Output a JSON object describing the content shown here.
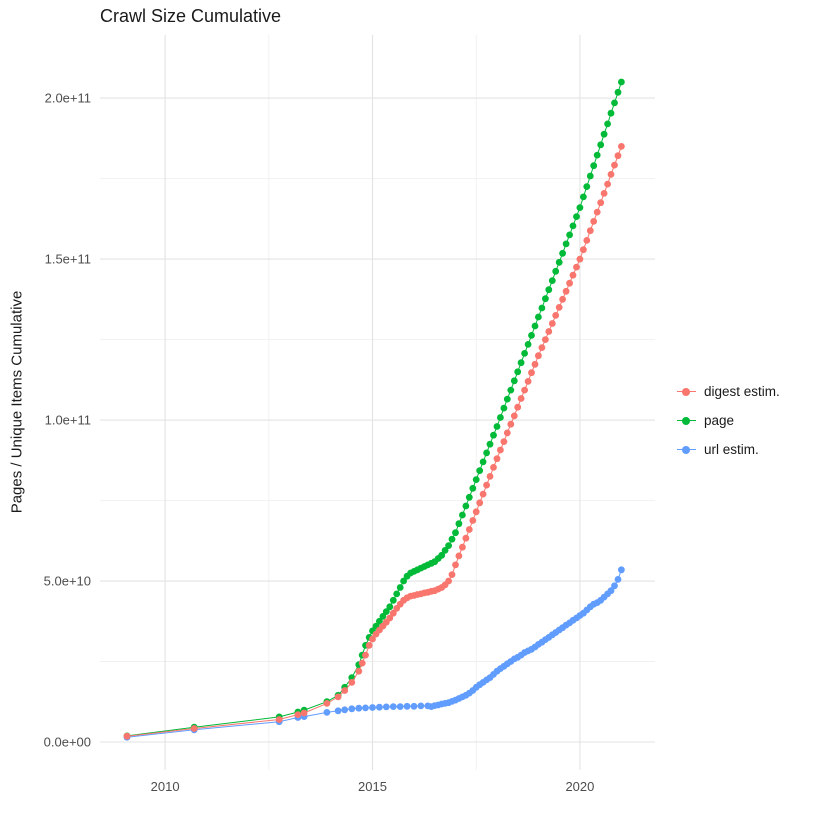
{
  "title": "Crawl Size Cumulative",
  "y_axis_title": "Pages / Unique Items Cumulative",
  "colors": {
    "background": "#ffffff",
    "grid_major": "#e3e3e3",
    "grid_minor": "#f0f0f0",
    "axis_text": "#4d4d4d",
    "title_text": "#1a1a1a",
    "digest": "#F8766D",
    "page": "#00BA38",
    "url": "#619CFF"
  },
  "legend": {
    "items": [
      {
        "label": "digest estim.",
        "color": "#F8766D"
      },
      {
        "label": "page",
        "color": "#00BA38"
      },
      {
        "label": "url estim.",
        "color": "#619CFF"
      }
    ]
  },
  "chart_data": {
    "type": "scatter",
    "title": "Crawl Size Cumulative",
    "xlabel": "",
    "ylabel": "Pages / Unique Items Cumulative",
    "grid": true,
    "legend_position": "right",
    "xlim": [
      2008.43,
      2021.81
    ],
    "ylim": [
      -8700000000.0,
      219600000000.0
    ],
    "x_ticks": {
      "values": [
        2010,
        2015,
        2020
      ],
      "labels": [
        "2010",
        "2015",
        "2020"
      ]
    },
    "x_minor_ticks": [
      2012.5,
      2017.5
    ],
    "y_ticks": {
      "values": [
        0,
        50000000000.0,
        100000000000.0,
        150000000000.0,
        200000000000.0
      ],
      "labels": [
        "0.0e+00",
        "5.0e+10",
        "1.0e+11",
        "1.5e+11",
        "2.0e+11"
      ]
    },
    "y_minor_ticks": [
      25000000000.0,
      75000000000.0,
      125000000000.0,
      175000000000.0
    ],
    "series": [
      {
        "name": "digest estim.",
        "color": "#F8766D",
        "points": [
          [
            2009.08,
            1800000000.0
          ],
          [
            2010.7,
            4200000000.0
          ],
          [
            2012.75,
            7000000000.0
          ],
          [
            2013.2,
            8500000000.0
          ],
          [
            2013.35,
            9000000000.0
          ],
          [
            2013.9,
            12000000000.0
          ],
          [
            2014.17,
            14000000000.0
          ],
          [
            2014.33,
            16000000000.0
          ],
          [
            2014.5,
            18500000000.0
          ],
          [
            2014.67,
            22000000000.0
          ],
          [
            2014.75,
            24500000000.0
          ],
          [
            2014.83,
            27000000000.0
          ],
          [
            2014.92,
            30000000000.0
          ],
          [
            2015.0,
            32000000000.0
          ],
          [
            2015.083,
            33500000000.0
          ],
          [
            2015.167,
            34800000000.0
          ],
          [
            2015.25,
            36000000000.0
          ],
          [
            2015.333,
            37200000000.0
          ],
          [
            2015.417,
            38500000000.0
          ],
          [
            2015.5,
            40000000000.0
          ],
          [
            2015.583,
            41500000000.0
          ],
          [
            2015.667,
            42800000000.0
          ],
          [
            2015.75,
            44000000000.0
          ],
          [
            2015.833,
            44800000000.0
          ],
          [
            2015.917,
            45300000000.0
          ],
          [
            2016.0,
            45500000000.0
          ],
          [
            2016.083,
            45800000000.0
          ],
          [
            2016.167,
            46000000000.0
          ],
          [
            2016.25,
            46300000000.0
          ],
          [
            2016.333,
            46500000000.0
          ],
          [
            2016.417,
            46800000000.0
          ],
          [
            2016.5,
            47000000000.0
          ],
          [
            2016.583,
            47500000000.0
          ],
          [
            2016.667,
            48000000000.0
          ],
          [
            2016.75,
            48800000000.0
          ],
          [
            2016.833,
            50000000000.0
          ],
          [
            2016.917,
            52000000000.0
          ],
          [
            2017.0,
            55000000000.0
          ],
          [
            2017.083,
            57800000000.0
          ],
          [
            2017.167,
            60500000000.0
          ],
          [
            2017.25,
            63300000000.0
          ],
          [
            2017.333,
            66000000000.0
          ],
          [
            2017.417,
            68800000000.0
          ],
          [
            2017.5,
            71500000000.0
          ],
          [
            2017.583,
            74300000000.0
          ],
          [
            2017.667,
            77000000000.0
          ],
          [
            2017.75,
            79800000000.0
          ],
          [
            2017.833,
            82500000000.0
          ],
          [
            2017.917,
            85300000000.0
          ],
          [
            2018.0,
            88000000000.0
          ],
          [
            2018.083,
            90700000000.0
          ],
          [
            2018.167,
            93300000000.0
          ],
          [
            2018.25,
            96000000000.0
          ],
          [
            2018.333,
            98700000000.0
          ],
          [
            2018.417,
            101300000000.0
          ],
          [
            2018.5,
            104000000000.0
          ],
          [
            2018.583,
            106700000000.0
          ],
          [
            2018.667,
            109300000000.0
          ],
          [
            2018.75,
            112000000000.0
          ],
          [
            2018.833,
            114700000000.0
          ],
          [
            2018.917,
            117300000000.0
          ],
          [
            2019.0,
            120000000000.0
          ],
          [
            2019.083,
            122500000000.0
          ],
          [
            2019.167,
            125000000000.0
          ],
          [
            2019.25,
            127500000000.0
          ],
          [
            2019.333,
            130000000000.0
          ],
          [
            2019.417,
            132500000000.0
          ],
          [
            2019.5,
            135000000000.0
          ],
          [
            2019.583,
            137500000000.0
          ],
          [
            2019.667,
            140000000000.0
          ],
          [
            2019.75,
            142500000000.0
          ],
          [
            2019.833,
            145000000000.0
          ],
          [
            2019.917,
            147500000000.0
          ],
          [
            2020.0,
            150000000000.0
          ],
          [
            2020.083,
            152900000000.0
          ],
          [
            2020.167,
            155800000000.0
          ],
          [
            2020.25,
            158800000000.0
          ],
          [
            2020.333,
            161700000000.0
          ],
          [
            2020.417,
            164600000000.0
          ],
          [
            2020.5,
            167500000000.0
          ],
          [
            2020.583,
            170400000000.0
          ],
          [
            2020.667,
            173300000000.0
          ],
          [
            2020.75,
            176300000000.0
          ],
          [
            2020.833,
            179200000000.0
          ],
          [
            2020.917,
            182100000000.0
          ],
          [
            2021.0,
            185000000000.0
          ]
        ]
      },
      {
        "name": "page",
        "color": "#00BA38",
        "points": [
          [
            2009.08,
            1900000000.0
          ],
          [
            2010.7,
            4600000000.0
          ],
          [
            2012.75,
            7800000000.0
          ],
          [
            2013.2,
            9300000000.0
          ],
          [
            2013.35,
            9900000000.0
          ],
          [
            2013.9,
            12500000000.0
          ],
          [
            2014.17,
            14500000000.0
          ],
          [
            2014.33,
            17000000000.0
          ],
          [
            2014.5,
            20000000000.0
          ],
          [
            2014.67,
            24000000000.0
          ],
          [
            2014.75,
            27000000000.0
          ],
          [
            2014.83,
            30000000000.0
          ],
          [
            2014.92,
            32500000000.0
          ],
          [
            2015.0,
            34500000000.0
          ],
          [
            2015.083,
            36000000000.0
          ],
          [
            2015.167,
            37500000000.0
          ],
          [
            2015.25,
            39000000000.0
          ],
          [
            2015.333,
            40500000000.0
          ],
          [
            2015.417,
            42000000000.0
          ],
          [
            2015.5,
            44000000000.0
          ],
          [
            2015.583,
            46000000000.0
          ],
          [
            2015.667,
            48000000000.0
          ],
          [
            2015.75,
            50000000000.0
          ],
          [
            2015.833,
            51500000000.0
          ],
          [
            2015.917,
            52500000000.0
          ],
          [
            2016.0,
            53000000000.0
          ],
          [
            2016.083,
            53500000000.0
          ],
          [
            2016.167,
            54000000000.0
          ],
          [
            2016.25,
            54500000000.0
          ],
          [
            2016.333,
            55000000000.0
          ],
          [
            2016.417,
            55500000000.0
          ],
          [
            2016.5,
            56000000000.0
          ],
          [
            2016.583,
            57000000000.0
          ],
          [
            2016.667,
            58000000000.0
          ],
          [
            2016.75,
            59500000000.0
          ],
          [
            2016.833,
            61000000000.0
          ],
          [
            2016.917,
            63000000000.0
          ],
          [
            2017.0,
            65000000000.0
          ],
          [
            2017.083,
            67800000000.0
          ],
          [
            2017.167,
            70500000000.0
          ],
          [
            2017.25,
            73300000000.0
          ],
          [
            2017.333,
            76000000000.0
          ],
          [
            2017.417,
            78800000000.0
          ],
          [
            2017.5,
            81500000000.0
          ],
          [
            2017.583,
            84300000000.0
          ],
          [
            2017.667,
            87000000000.0
          ],
          [
            2017.75,
            89800000000.0
          ],
          [
            2017.833,
            92500000000.0
          ],
          [
            2017.917,
            95300000000.0
          ],
          [
            2018.0,
            98000000000.0
          ],
          [
            2018.083,
            100800000000.0
          ],
          [
            2018.167,
            103700000000.0
          ],
          [
            2018.25,
            106500000000.0
          ],
          [
            2018.333,
            109300000000.0
          ],
          [
            2018.417,
            112200000000.0
          ],
          [
            2018.5,
            115000000000.0
          ],
          [
            2018.583,
            117800000000.0
          ],
          [
            2018.667,
            120700000000.0
          ],
          [
            2018.75,
            123500000000.0
          ],
          [
            2018.833,
            126300000000.0
          ],
          [
            2018.917,
            129200000000.0
          ],
          [
            2019.0,
            132000000000.0
          ],
          [
            2019.083,
            134800000000.0
          ],
          [
            2019.167,
            137700000000.0
          ],
          [
            2019.25,
            140500000000.0
          ],
          [
            2019.333,
            143300000000.0
          ],
          [
            2019.417,
            146200000000.0
          ],
          [
            2019.5,
            149000000000.0
          ],
          [
            2019.583,
            151800000000.0
          ],
          [
            2019.667,
            154700000000.0
          ],
          [
            2019.75,
            157500000000.0
          ],
          [
            2019.833,
            160300000000.0
          ],
          [
            2019.917,
            163200000000.0
          ],
          [
            2020.0,
            166000000000.0
          ],
          [
            2020.083,
            169300000000.0
          ],
          [
            2020.167,
            172500000000.0
          ],
          [
            2020.25,
            175800000000.0
          ],
          [
            2020.333,
            179000000000.0
          ],
          [
            2020.417,
            182300000000.0
          ],
          [
            2020.5,
            185500000000.0
          ],
          [
            2020.583,
            188800000000.0
          ],
          [
            2020.667,
            192000000000.0
          ],
          [
            2020.75,
            195300000000.0
          ],
          [
            2020.833,
            198500000000.0
          ],
          [
            2020.917,
            201800000000.0
          ],
          [
            2021.0,
            205000000000.0
          ]
        ]
      },
      {
        "name": "url estim.",
        "color": "#619CFF",
        "points": [
          [
            2009.08,
            1500000000.0
          ],
          [
            2010.7,
            3800000000.0
          ],
          [
            2012.75,
            6300000000.0
          ],
          [
            2013.2,
            7600000000.0
          ],
          [
            2013.35,
            7900000000.0
          ],
          [
            2013.9,
            9200000000.0
          ],
          [
            2014.17,
            9700000000.0
          ],
          [
            2014.33,
            10000000000.0
          ],
          [
            2014.5,
            10300000000.0
          ],
          [
            2014.67,
            10500000000.0
          ],
          [
            2014.83,
            10600000000.0
          ],
          [
            2015.0,
            10700000000.0
          ],
          [
            2015.167,
            10800000000.0
          ],
          [
            2015.333,
            10900000000.0
          ],
          [
            2015.5,
            11000000000.0
          ],
          [
            2015.667,
            11000000000.0
          ],
          [
            2015.833,
            11100000000.0
          ],
          [
            2016.0,
            11100000000.0
          ],
          [
            2016.167,
            11200000000.0
          ],
          [
            2016.333,
            11200000000.0
          ],
          [
            2016.417,
            11000000000.0
          ],
          [
            2016.5,
            11300000000.0
          ],
          [
            2016.583,
            11500000000.0
          ],
          [
            2016.667,
            11800000000.0
          ],
          [
            2016.75,
            12000000000.0
          ],
          [
            2016.833,
            12200000000.0
          ],
          [
            2016.917,
            12600000000.0
          ],
          [
            2017.0,
            13000000000.0
          ],
          [
            2017.083,
            13500000000.0
          ],
          [
            2017.167,
            14000000000.0
          ],
          [
            2017.25,
            14500000000.0
          ],
          [
            2017.333,
            15200000000.0
          ],
          [
            2017.417,
            16000000000.0
          ],
          [
            2017.5,
            17000000000.0
          ],
          [
            2017.583,
            17800000000.0
          ],
          [
            2017.667,
            18500000000.0
          ],
          [
            2017.75,
            19300000000.0
          ],
          [
            2017.833,
            20000000000.0
          ],
          [
            2017.917,
            21000000000.0
          ],
          [
            2018.0,
            22000000000.0
          ],
          [
            2018.083,
            22800000000.0
          ],
          [
            2018.167,
            23500000000.0
          ],
          [
            2018.25,
            24300000000.0
          ],
          [
            2018.333,
            25000000000.0
          ],
          [
            2018.417,
            25800000000.0
          ],
          [
            2018.5,
            26300000000.0
          ],
          [
            2018.583,
            27000000000.0
          ],
          [
            2018.667,
            27800000000.0
          ],
          [
            2018.75,
            28300000000.0
          ],
          [
            2018.833,
            28800000000.0
          ],
          [
            2018.917,
            29500000000.0
          ],
          [
            2019.0,
            30300000000.0
          ],
          [
            2019.083,
            31000000000.0
          ],
          [
            2019.167,
            31800000000.0
          ],
          [
            2019.25,
            32500000000.0
          ],
          [
            2019.333,
            33300000000.0
          ],
          [
            2019.417,
            34000000000.0
          ],
          [
            2019.5,
            34800000000.0
          ],
          [
            2019.583,
            35500000000.0
          ],
          [
            2019.667,
            36300000000.0
          ],
          [
            2019.75,
            37000000000.0
          ],
          [
            2019.833,
            37800000000.0
          ],
          [
            2019.917,
            38500000000.0
          ],
          [
            2020.0,
            39300000000.0
          ],
          [
            2020.083,
            40000000000.0
          ],
          [
            2020.167,
            41000000000.0
          ],
          [
            2020.25,
            42000000000.0
          ],
          [
            2020.333,
            42800000000.0
          ],
          [
            2020.417,
            43300000000.0
          ],
          [
            2020.5,
            44000000000.0
          ],
          [
            2020.583,
            45000000000.0
          ],
          [
            2020.667,
            46000000000.0
          ],
          [
            2020.75,
            47000000000.0
          ],
          [
            2020.833,
            48500000000.0
          ],
          [
            2020.917,
            50500000000.0
          ],
          [
            2021.0,
            53500000000.0
          ]
        ]
      }
    ]
  }
}
